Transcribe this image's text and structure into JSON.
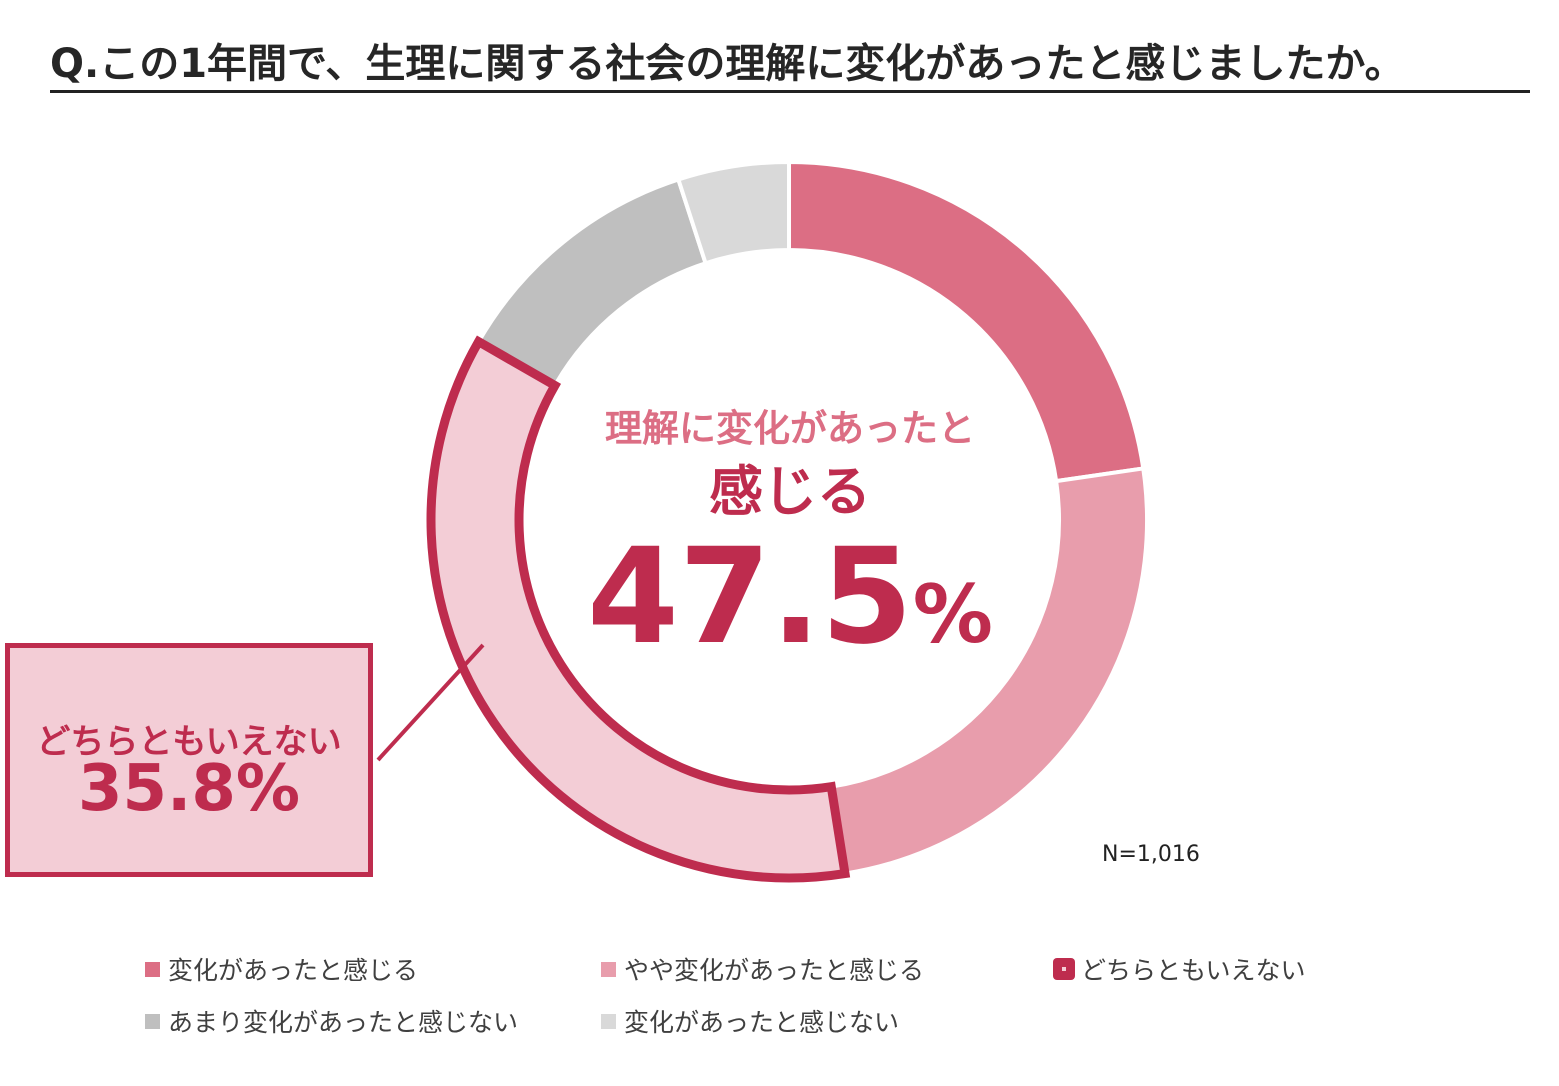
{
  "title": "Q.この1年間で、生理に関する社会の理解に変化があったと感じましたか。",
  "center_label": {
    "line1": "理解に変化があったと",
    "line2": "感じる",
    "value": "47.5",
    "unit": "%"
  },
  "callout": {
    "label": "どちらともいえない",
    "value": "35.8%"
  },
  "sample_size": "N=1,016",
  "colors": {
    "accent": "#be2c4e",
    "highlight_fill": "#f3cdd6"
  },
  "chart_data": {
    "type": "pie",
    "subtype": "donut",
    "series": [
      {
        "name": "変化があったと感じる",
        "value": 22.7,
        "color": "#dc6e84"
      },
      {
        "name": "やや変化があったと感じる",
        "value": 24.8,
        "color": "#e89dac"
      },
      {
        "name": "どちらともいえない",
        "value": 35.8,
        "color": "#f3cdd6",
        "highlight": true
      },
      {
        "name": "あまり変化があったと感じない",
        "value": 11.7,
        "color": "#bfbfbf"
      },
      {
        "name": "変化があったと感じない",
        "value": 5.0,
        "color": "#d9d9d9"
      }
    ]
  }
}
